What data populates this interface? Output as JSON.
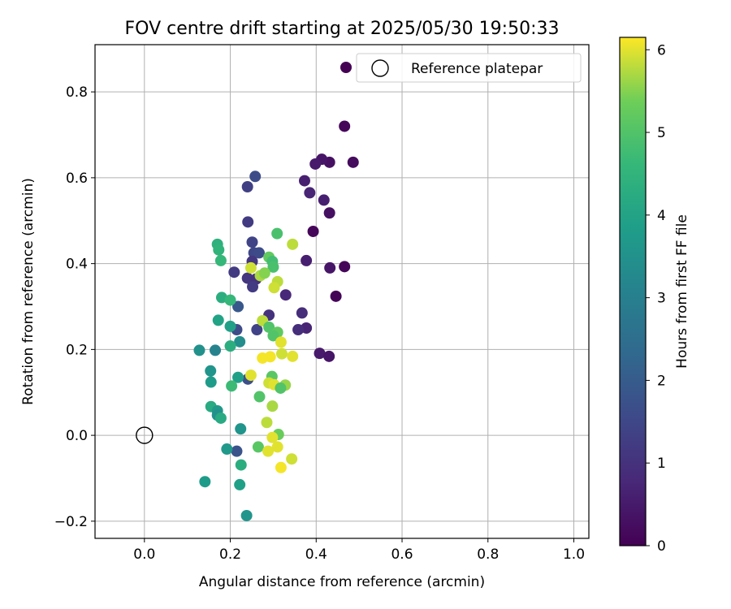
{
  "chart_data": {
    "type": "scatter",
    "title": "FOV centre drift starting at 2025/05/30 19:50:33",
    "xlabel": "Angular distance from reference (arcmin)",
    "ylabel": "Rotation from reference (arcmin)",
    "xlim": [
      -0.115,
      1.035
    ],
    "ylim": [
      -0.24,
      0.91
    ],
    "xticks": [
      "0.0",
      "0.2",
      "0.4",
      "0.6",
      "0.8",
      "1.0"
    ],
    "xtick_values": [
      0.0,
      0.2,
      0.4,
      0.6,
      0.8,
      1.0
    ],
    "yticks": [
      "−0.2",
      "0.0",
      "0.2",
      "0.4",
      "0.6",
      "0.8"
    ],
    "ytick_values": [
      -0.2,
      0.0,
      0.2,
      0.4,
      0.6,
      0.8
    ],
    "grid": true,
    "legend_position": "top-right",
    "legend_label": "Reference platepar",
    "colorbar": {
      "label": "Hours from first FF file",
      "range": [
        0,
        6.15
      ],
      "ticks": [
        "0",
        "1",
        "2",
        "3",
        "4",
        "5",
        "6"
      ],
      "tick_values": [
        0,
        1,
        2,
        3,
        4,
        5,
        6
      ],
      "colormap": "viridis"
    },
    "reference_point": {
      "x": 0.0,
      "y": 0.0
    },
    "points": [
      {
        "x": 0.466,
        "y": 0.72,
        "h": 0.1
      },
      {
        "x": 0.486,
        "y": 0.636,
        "h": 0.2
      },
      {
        "x": 0.431,
        "y": 0.636,
        "h": 0.3
      },
      {
        "x": 0.413,
        "y": 0.643,
        "h": 0.4
      },
      {
        "x": 0.398,
        "y": 0.632,
        "h": 0.5
      },
      {
        "x": 0.373,
        "y": 0.593,
        "h": 0.6
      },
      {
        "x": 0.385,
        "y": 0.565,
        "h": 0.7
      },
      {
        "x": 0.418,
        "y": 0.548,
        "h": 0.6
      },
      {
        "x": 0.431,
        "y": 0.518,
        "h": 0.3
      },
      {
        "x": 0.393,
        "y": 0.475,
        "h": 0.1
      },
      {
        "x": 0.466,
        "y": 0.393,
        "h": 0.1
      },
      {
        "x": 0.432,
        "y": 0.39,
        "h": 0.4
      },
      {
        "x": 0.446,
        "y": 0.324,
        "h": 0.05
      },
      {
        "x": 0.377,
        "y": 0.407,
        "h": 0.6
      },
      {
        "x": 0.329,
        "y": 0.327,
        "h": 0.8
      },
      {
        "x": 0.367,
        "y": 0.285,
        "h": 0.9
      },
      {
        "x": 0.377,
        "y": 0.25,
        "h": 0.7
      },
      {
        "x": 0.358,
        "y": 0.246,
        "h": 0.9
      },
      {
        "x": 0.408,
        "y": 0.191,
        "h": 0.5
      },
      {
        "x": 0.43,
        "y": 0.184,
        "h": 0.4
      },
      {
        "x": 0.258,
        "y": 0.603,
        "h": 1.6
      },
      {
        "x": 0.24,
        "y": 0.579,
        "h": 1.3
      },
      {
        "x": 0.241,
        "y": 0.497,
        "h": 1.2
      },
      {
        "x": 0.251,
        "y": 0.45,
        "h": 1.4
      },
      {
        "x": 0.255,
        "y": 0.425,
        "h": 1.5
      },
      {
        "x": 0.267,
        "y": 0.425,
        "h": 1.6
      },
      {
        "x": 0.251,
        "y": 0.405,
        "h": 1.1
      },
      {
        "x": 0.209,
        "y": 0.38,
        "h": 1.2
      },
      {
        "x": 0.24,
        "y": 0.366,
        "h": 1.1
      },
      {
        "x": 0.26,
        "y": 0.364,
        "h": 1.0
      },
      {
        "x": 0.252,
        "y": 0.346,
        "h": 1.2
      },
      {
        "x": 0.218,
        "y": 0.3,
        "h": 1.9
      },
      {
        "x": 0.29,
        "y": 0.28,
        "h": 1.0
      },
      {
        "x": 0.215,
        "y": 0.246,
        "h": 1.6
      },
      {
        "x": 0.262,
        "y": 0.246,
        "h": 1.4
      },
      {
        "x": 0.241,
        "y": 0.131,
        "h": 1.7
      },
      {
        "x": 0.215,
        "y": -0.037,
        "h": 1.8
      },
      {
        "x": 0.17,
        "y": 0.445,
        "h": 4.4
      },
      {
        "x": 0.173,
        "y": 0.432,
        "h": 4.5
      },
      {
        "x": 0.178,
        "y": 0.407,
        "h": 4.6
      },
      {
        "x": 0.18,
        "y": 0.321,
        "h": 4.3
      },
      {
        "x": 0.2,
        "y": 0.315,
        "h": 4.6
      },
      {
        "x": 0.172,
        "y": 0.268,
        "h": 4.0
      },
      {
        "x": 0.2,
        "y": 0.254,
        "h": 3.9
      },
      {
        "x": 0.222,
        "y": 0.218,
        "h": 3.4
      },
      {
        "x": 0.2,
        "y": 0.208,
        "h": 4.3
      },
      {
        "x": 0.128,
        "y": 0.198,
        "h": 3.5
      },
      {
        "x": 0.165,
        "y": 0.198,
        "h": 3.1
      },
      {
        "x": 0.154,
        "y": 0.15,
        "h": 3.6
      },
      {
        "x": 0.218,
        "y": 0.135,
        "h": 3.9
      },
      {
        "x": 0.155,
        "y": 0.124,
        "h": 3.8
      },
      {
        "x": 0.203,
        "y": 0.115,
        "h": 4.7
      },
      {
        "x": 0.155,
        "y": 0.067,
        "h": 4.2
      },
      {
        "x": 0.17,
        "y": 0.057,
        "h": 3.7
      },
      {
        "x": 0.17,
        "y": 0.047,
        "h": 3.5
      },
      {
        "x": 0.178,
        "y": 0.04,
        "h": 4.2
      },
      {
        "x": 0.224,
        "y": 0.015,
        "h": 3.6
      },
      {
        "x": 0.192,
        "y": -0.032,
        "h": 3.7
      },
      {
        "x": 0.225,
        "y": -0.069,
        "h": 4.3
      },
      {
        "x": 0.141,
        "y": -0.108,
        "h": 3.8
      },
      {
        "x": 0.222,
        "y": -0.115,
        "h": 3.9
      },
      {
        "x": 0.238,
        "y": -0.187,
        "h": 3.6
      },
      {
        "x": 0.309,
        "y": 0.47,
        "h": 4.9
      },
      {
        "x": 0.345,
        "y": 0.445,
        "h": 5.8
      },
      {
        "x": 0.29,
        "y": 0.415,
        "h": 5.2
      },
      {
        "x": 0.298,
        "y": 0.405,
        "h": 4.8
      },
      {
        "x": 0.3,
        "y": 0.392,
        "h": 4.9
      },
      {
        "x": 0.248,
        "y": 0.39,
        "h": 5.9
      },
      {
        "x": 0.27,
        "y": 0.372,
        "h": 5.7
      },
      {
        "x": 0.28,
        "y": 0.378,
        "h": 5.5
      },
      {
        "x": 0.31,
        "y": 0.358,
        "h": 5.8
      },
      {
        "x": 0.302,
        "y": 0.344,
        "h": 5.9
      },
      {
        "x": 0.275,
        "y": 0.267,
        "h": 5.8
      },
      {
        "x": 0.29,
        "y": 0.252,
        "h": 5.0
      },
      {
        "x": 0.31,
        "y": 0.24,
        "h": 5.2
      },
      {
        "x": 0.3,
        "y": 0.232,
        "h": 5.0
      },
      {
        "x": 0.318,
        "y": 0.217,
        "h": 6.0
      },
      {
        "x": 0.32,
        "y": 0.19,
        "h": 5.9
      },
      {
        "x": 0.345,
        "y": 0.184,
        "h": 6.0
      },
      {
        "x": 0.275,
        "y": 0.18,
        "h": 6.1
      },
      {
        "x": 0.293,
        "y": 0.183,
        "h": 6.1
      },
      {
        "x": 0.248,
        "y": 0.14,
        "h": 6.0
      },
      {
        "x": 0.297,
        "y": 0.137,
        "h": 5.1
      },
      {
        "x": 0.29,
        "y": 0.122,
        "h": 5.9
      },
      {
        "x": 0.302,
        "y": 0.118,
        "h": 6.0
      },
      {
        "x": 0.328,
        "y": 0.117,
        "h": 5.6
      },
      {
        "x": 0.317,
        "y": 0.11,
        "h": 5.0
      },
      {
        "x": 0.268,
        "y": 0.09,
        "h": 5.0
      },
      {
        "x": 0.298,
        "y": 0.068,
        "h": 5.7
      },
      {
        "x": 0.285,
        "y": 0.03,
        "h": 5.8
      },
      {
        "x": 0.312,
        "y": 0.002,
        "h": 5.3
      },
      {
        "x": 0.298,
        "y": -0.005,
        "h": 6.0
      },
      {
        "x": 0.265,
        "y": -0.027,
        "h": 5.1
      },
      {
        "x": 0.31,
        "y": -0.027,
        "h": 6.0
      },
      {
        "x": 0.288,
        "y": -0.037,
        "h": 6.0
      },
      {
        "x": 0.343,
        "y": -0.055,
        "h": 5.9
      },
      {
        "x": 0.318,
        "y": -0.075,
        "h": 6.1
      }
    ]
  }
}
